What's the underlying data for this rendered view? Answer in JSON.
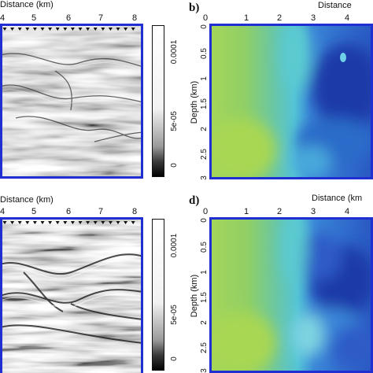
{
  "chart_data": [
    {
      "type": "heatmap",
      "panel": "",
      "xlabel": "Distance (km)",
      "xticks": [
        "4",
        "5",
        "6",
        "7",
        "8"
      ],
      "colorbar_ticks": [
        "0.0001",
        "5e-05",
        "0"
      ],
      "colormap": "gray",
      "description_visible": "seismic migrated image"
    },
    {
      "type": "heatmap",
      "panel": "b)",
      "xlabel": "Distance",
      "ylabel": "Depth (km)",
      "xticks": [
        "0",
        "1",
        "2",
        "3",
        "4"
      ],
      "yticks": [
        "0",
        "0.5",
        "1",
        "1.5",
        "2",
        "2.5",
        "3"
      ],
      "colormap": "viridis-like (green to blue)"
    },
    {
      "type": "heatmap",
      "panel": "",
      "xlabel": "Distance (km)",
      "xticks": [
        "4",
        "5",
        "6",
        "7",
        "8"
      ],
      "colorbar_ticks": [
        "0.0001",
        "5e-05",
        "0"
      ],
      "colormap": "gray"
    },
    {
      "type": "heatmap",
      "panel": "d)",
      "xlabel": "Distance (km",
      "ylabel": "Depth (km)",
      "xticks": [
        "0",
        "1",
        "2",
        "3",
        "4"
      ],
      "yticks": [
        "0",
        "0.5",
        "1",
        "1.5",
        "2",
        "2.5",
        "3"
      ],
      "colormap": "viridis-like (green to blue)"
    }
  ],
  "colors": {
    "frame": "#1f2fd1",
    "green": "#9fd35a",
    "teal": "#46c1c8",
    "blue": "#2f6fd0",
    "deep_blue": "#1d3aa8"
  }
}
